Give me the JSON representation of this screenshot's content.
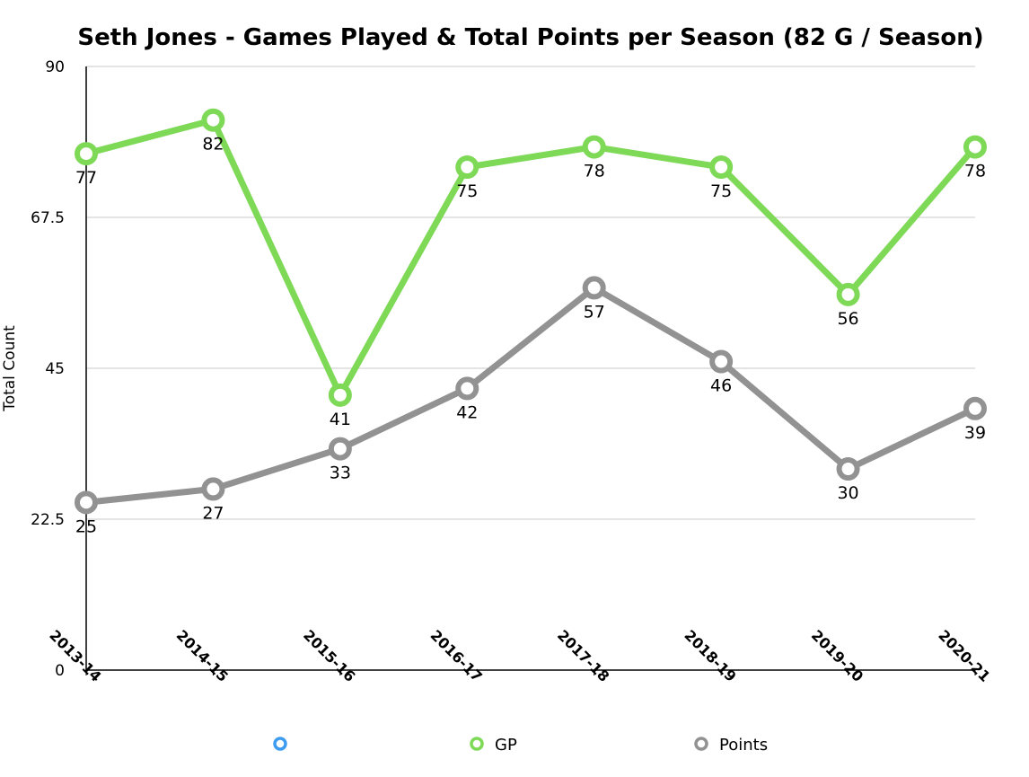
{
  "chart_data": {
    "type": "line",
    "title": "Seth Jones - Games Played & Total Points per Season (82 G / Season)",
    "xlabel": "",
    "ylabel": "Total Count",
    "categories": [
      "2013-14",
      "2014-15",
      "2015-16",
      "2016-17",
      "2017-18",
      "2018-19",
      "2019-20",
      "2020-21"
    ],
    "ylim": [
      0,
      90
    ],
    "yticks": [
      "0",
      "22.5",
      "45",
      "67.5",
      "90"
    ],
    "grid": true,
    "legend_position": "bottom",
    "legend": [
      {
        "name": "",
        "color": "#3d9cf0"
      },
      {
        "name": "GP",
        "color": "#7ed957"
      },
      {
        "name": "Points",
        "color": "#929292"
      }
    ],
    "series": [
      {
        "name": "GP",
        "color": "#7ed957",
        "values": [
          77,
          82,
          41,
          75,
          78,
          75,
          56,
          78
        ],
        "labels": [
          "77",
          "82",
          "41",
          "75",
          "78",
          "75",
          "56",
          "78"
        ]
      },
      {
        "name": "Points",
        "color": "#929292",
        "values": [
          25,
          27,
          33,
          42,
          57,
          46,
          30,
          39
        ],
        "labels": [
          "25",
          "27",
          "33",
          "42",
          "57",
          "46",
          "30",
          "39"
        ]
      }
    ]
  }
}
